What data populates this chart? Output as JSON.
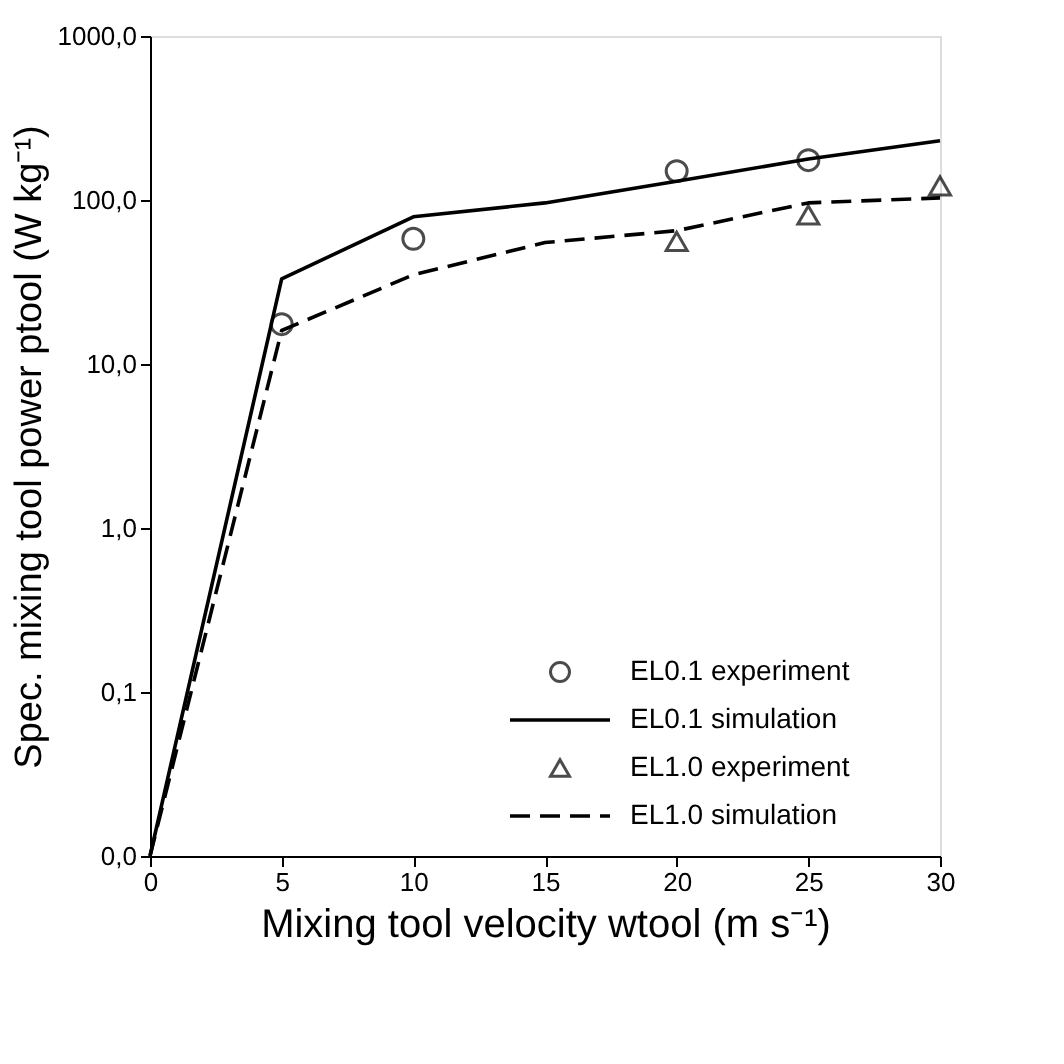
{
  "chart_data": {
    "type": "line",
    "xlabel": "Mixing tool velocity wtool (m s⁻¹)",
    "ylabel": "Spec. mixing tool power ptool (W kg⁻¹)",
    "log": "y",
    "grid": false,
    "legend": "bottom right",
    "xlim": [
      0,
      30
    ],
    "xticks": [
      0,
      5,
      10,
      15,
      20,
      25,
      30
    ],
    "ylim": [
      0.01,
      1000
    ],
    "yticks": [
      {
        "value": 0.01,
        "label": "0,0"
      },
      {
        "value": 0.1,
        "label": "0,1"
      },
      {
        "value": 1,
        "label": "1,0"
      },
      {
        "value": 10,
        "label": "10,0"
      },
      {
        "value": 100,
        "label": "100,0"
      },
      {
        "value": 1000,
        "label": "1000,0"
      }
    ],
    "series": [
      {
        "name": "EL0.1 experiment",
        "type": "scatter",
        "marker": "circle",
        "color": "#000000",
        "x": [
          5,
          10,
          20,
          25
        ],
        "values": [
          17.5,
          58,
          150,
          175
        ]
      },
      {
        "name": "EL0.1 simulation",
        "type": "line",
        "line_style": "solid",
        "color": "#000000",
        "x": [
          0,
          5,
          10,
          15,
          20,
          25,
          30
        ],
        "values": [
          0.01,
          33,
          79,
          96,
          130,
          178,
          230
        ]
      },
      {
        "name": "EL1.0 experiment",
        "type": "scatter",
        "marker": "triangle",
        "color": "#000000",
        "x": [
          20,
          25,
          30
        ],
        "values": [
          56,
          81,
          122
        ]
      },
      {
        "name": "EL1.0 simulation",
        "type": "line",
        "line_style": "dashed",
        "color": "#000000",
        "x": [
          0,
          5,
          10,
          15,
          20,
          25,
          30
        ],
        "values": [
          0.01,
          16,
          35,
          55,
          65,
          96,
          103
        ]
      }
    ]
  }
}
